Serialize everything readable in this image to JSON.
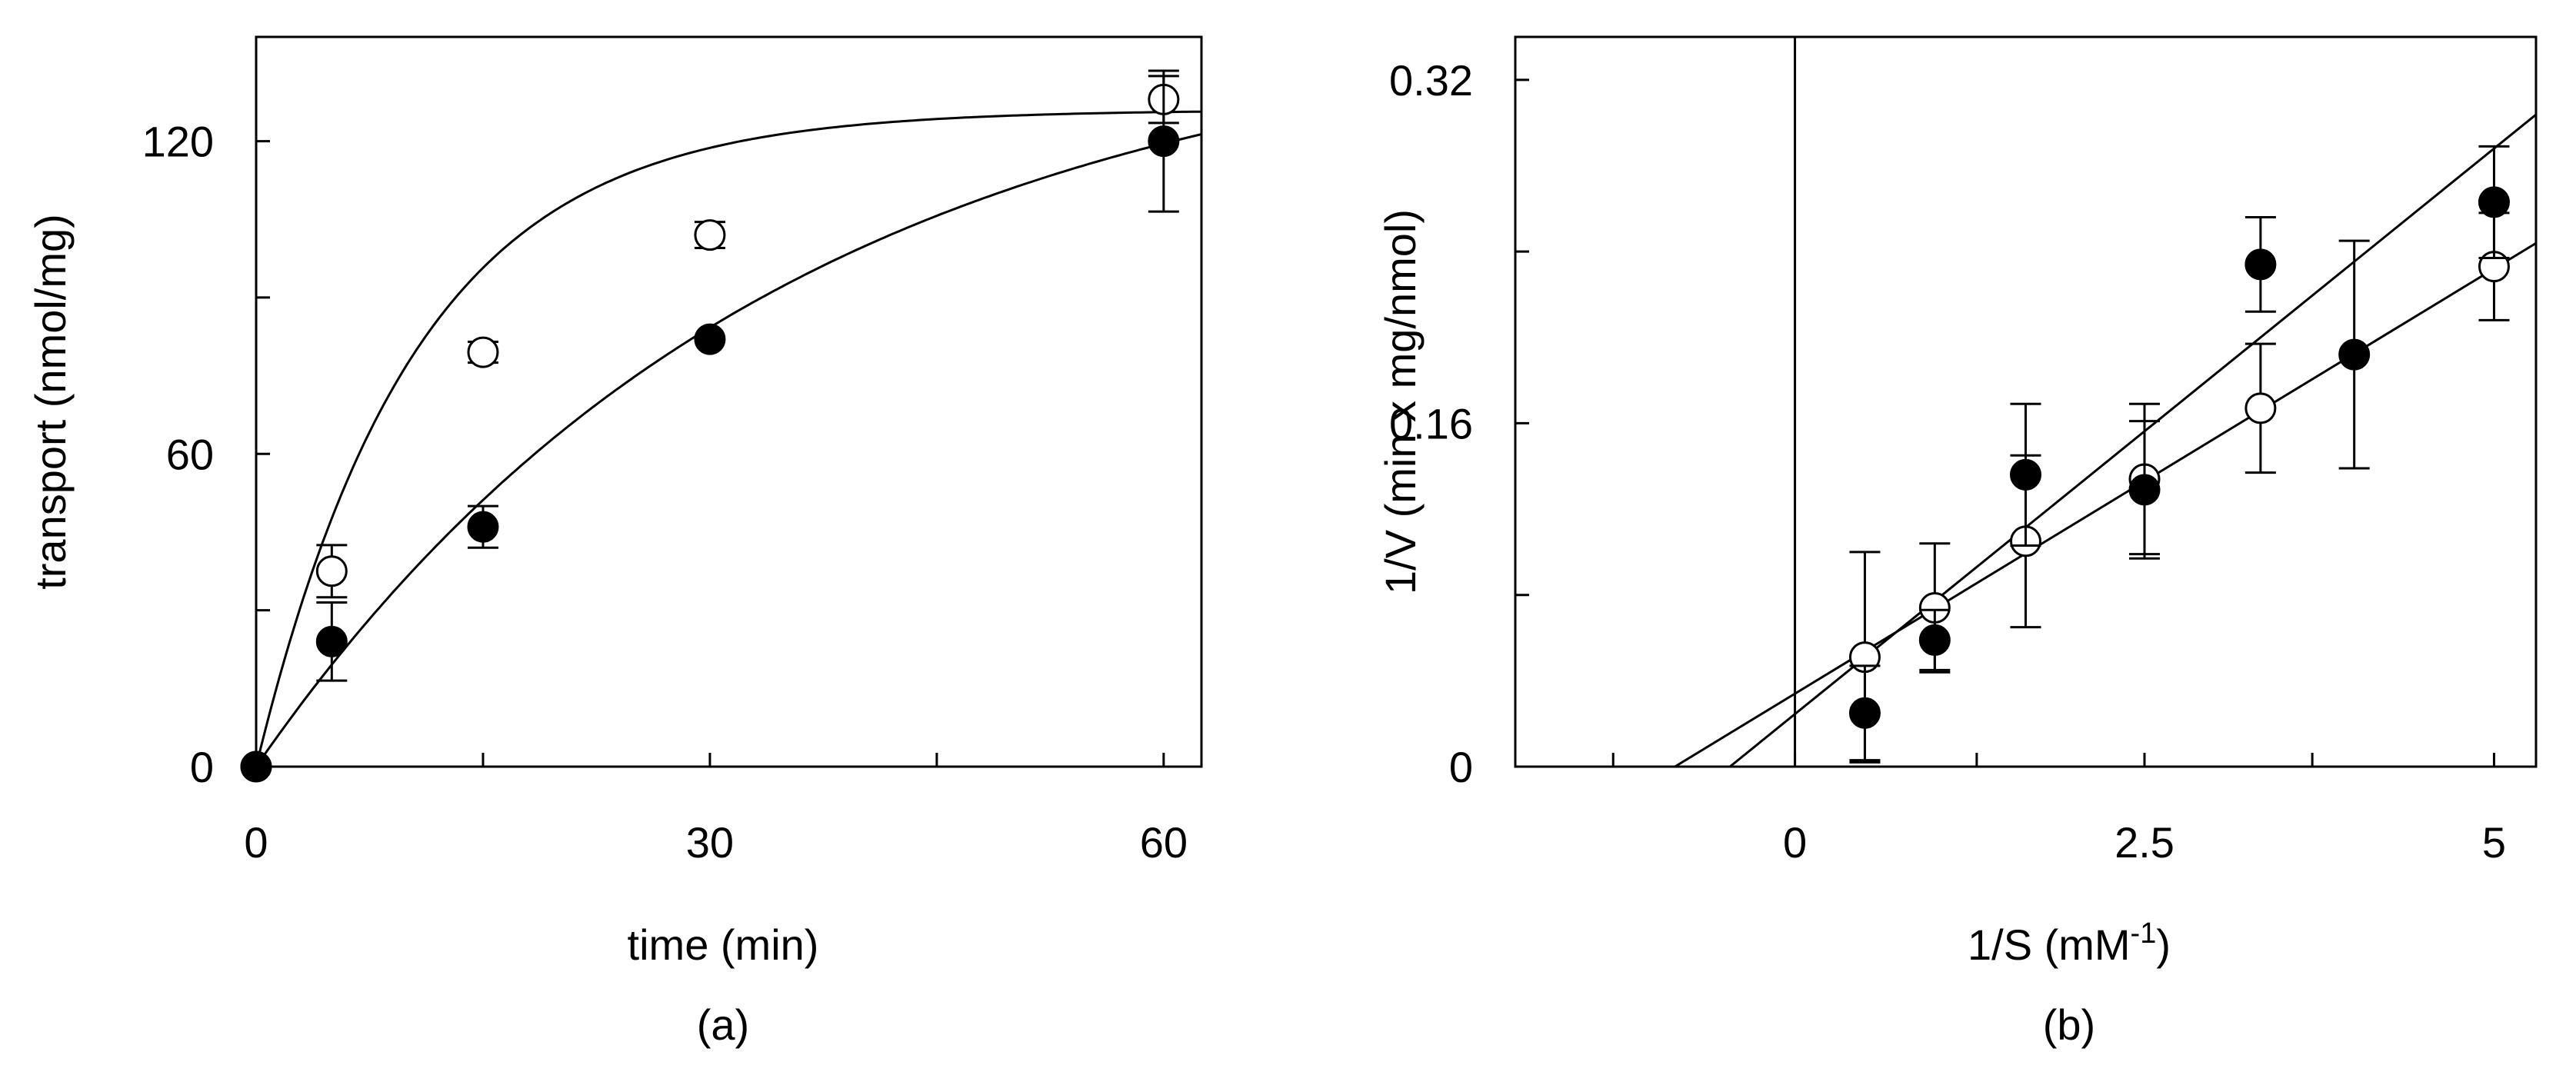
{
  "chart_data": [
    {
      "type": "scatter",
      "xlabel": "time (min)",
      "ylabel": "transport (nmol/mg)",
      "panel_label": "(a)",
      "xlim": [
        0,
        62.5
      ],
      "ylim": [
        0,
        140
      ],
      "x_ticks": [
        "0",
        "30",
        "60"
      ],
      "y_ticks": [
        "0",
        "60",
        "120"
      ],
      "x_minor_ticks": [
        15,
        45
      ],
      "y_minor_ticks": [
        30,
        90
      ],
      "grid": false,
      "series": [
        {
          "marker": "open-circle",
          "points": [
            {
              "x": 0,
              "y": 0,
              "err": 0
            },
            {
              "x": 5,
              "y": 37.5,
              "err": 5
            },
            {
              "x": 15,
              "y": 79.5,
              "err": 2
            },
            {
              "x": 30,
              "y": 102,
              "err": 2.5
            },
            {
              "x": 60,
              "y": 128,
              "err": 4.5
            }
          ],
          "fit": {
            "model": "saturation",
            "ymax": 126,
            "k": 0.095
          }
        },
        {
          "marker": "filled-circle",
          "points": [
            {
              "x": 0,
              "y": 0,
              "err": 0
            },
            {
              "x": 5,
              "y": 24,
              "err": 7.5
            },
            {
              "x": 15,
              "y": 46,
              "err": 4
            },
            {
              "x": 30,
              "y": 82,
              "err": 0
            },
            {
              "x": 60,
              "y": 120,
              "err": 13.5
            }
          ],
          "fit": {
            "model": "saturation",
            "ymax": 145,
            "k": 0.029
          }
        }
      ]
    },
    {
      "type": "scatter",
      "xlabel": "1/S (mM",
      "xlabel_sup": "-1",
      "xlabel_close": ")",
      "ylabel": "1/V (min x mg/nmol)",
      "panel_label": "(b)",
      "xlim": [
        -2,
        5.3
      ],
      "ylim": [
        0,
        0.34
      ],
      "x_ticks": [
        "0",
        "2.5",
        "5"
      ],
      "y_ticks": [
        "0",
        "0.16",
        "0.32"
      ],
      "x_minor_ticks": [
        -1.3,
        1.3,
        3.7
      ],
      "y_minor_ticks": [
        0.08,
        0.24
      ],
      "y_axis_at_x": 0,
      "grid": false,
      "series": [
        {
          "marker": "open-circle",
          "points": [
            {
              "x": 0.5,
              "y": 0.051,
              "err": 0.049
            },
            {
              "x": 1.0,
              "y": 0.074,
              "err": 0.03
            },
            {
              "x": 1.65,
              "y": 0.105,
              "err": 0.04
            },
            {
              "x": 2.5,
              "y": 0.134,
              "err": 0.035
            },
            {
              "x": 3.33,
              "y": 0.167,
              "err": 0.03
            },
            {
              "x": 5.0,
              "y": 0.233,
              "err": 0.025
            }
          ],
          "fit": {
            "model": "linear",
            "slope": 0.0396,
            "intercept": 0.034,
            "x_from": -0.87
          }
        },
        {
          "marker": "filled-circle",
          "points": [
            {
              "x": 0.5,
              "y": 0.025,
              "err": 0.022
            },
            {
              "x": 1.0,
              "y": 0.059,
              "err": 0.014
            },
            {
              "x": 1.65,
              "y": 0.136,
              "err": 0.033
            },
            {
              "x": 2.5,
              "y": 0.129,
              "err": 0.032
            },
            {
              "x": 3.33,
              "y": 0.234,
              "err": 0.022
            },
            {
              "x": 4.0,
              "y": 0.192,
              "err": 0.053
            },
            {
              "x": 5.0,
              "y": 0.263,
              "err": 0.026
            }
          ],
          "fit": {
            "model": "linear",
            "slope": 0.0527,
            "intercept": 0.0245,
            "x_from": -0.47
          }
        }
      ]
    }
  ]
}
